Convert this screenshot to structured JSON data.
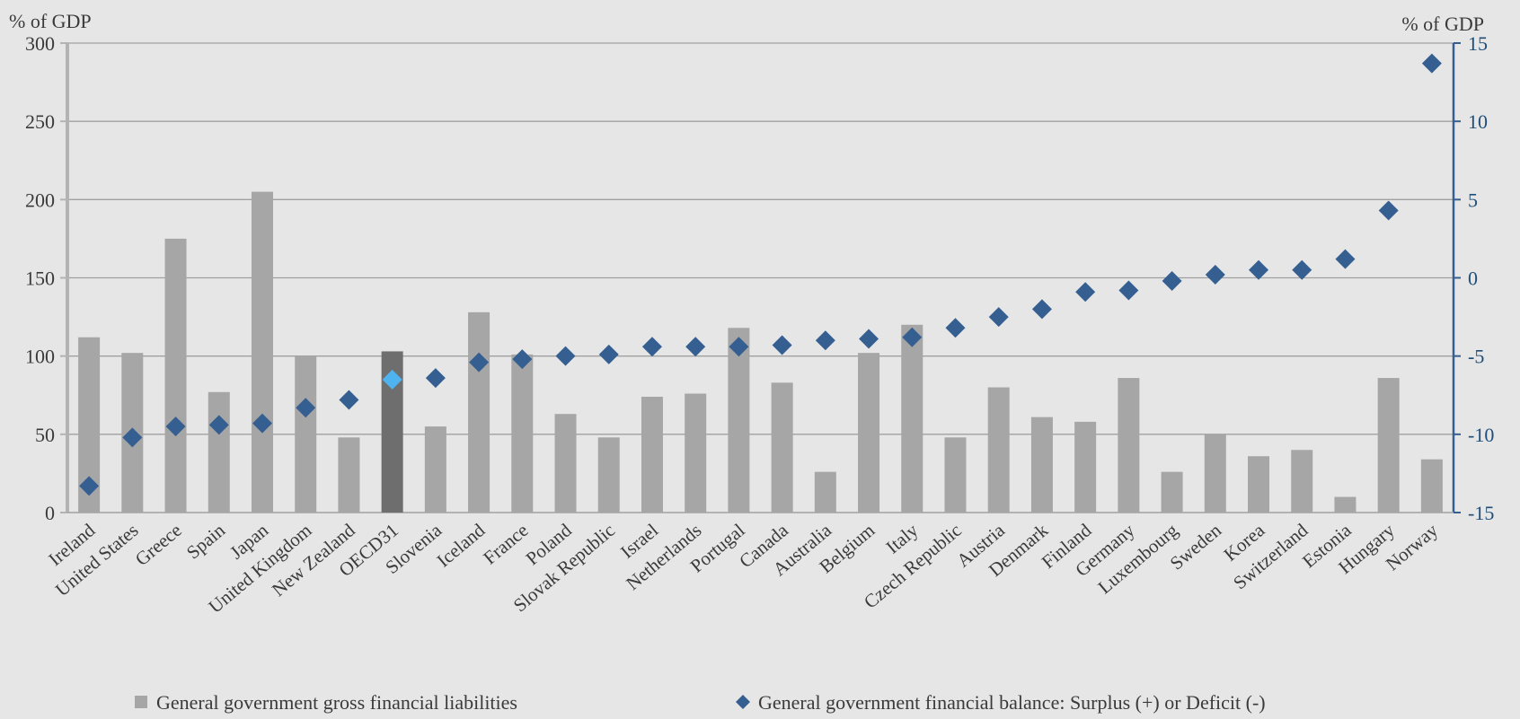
{
  "chart_data": {
    "type": "bar",
    "categories": [
      "Ireland",
      "United States",
      "Greece",
      "Spain",
      "Japan",
      "United Kingdom",
      "New Zealand",
      "OECD31",
      "Slovenia",
      "Iceland",
      "France",
      "Poland",
      "Slovak Republic",
      "Israel",
      "Netherlands",
      "Portugal",
      "Canada",
      "Australia",
      "Belgium",
      "Italy",
      "Czech Republic",
      "Austria",
      "Denmark",
      "Finland",
      "Germany",
      "Luxembourg",
      "Sweden",
      "Korea",
      "Switzerland",
      "Estonia",
      "Hungary",
      "Norway"
    ],
    "series": [
      {
        "name": "General government gross financial liabilities",
        "type": "bar",
        "axis": "left",
        "color": "#a6a6a6",
        "highlight_category": "OECD31",
        "highlight_color": "#6e6e6e",
        "values": [
          112,
          102,
          175,
          77,
          205,
          100,
          48,
          103,
          55,
          128,
          101,
          63,
          48,
          74,
          76,
          118,
          83,
          26,
          102,
          120,
          48,
          80,
          61,
          58,
          86,
          26,
          50,
          36,
          40,
          10,
          86,
          34
        ]
      },
      {
        "name": "General government financial balance: Surplus (+) or Deficit (-)",
        "type": "scatter",
        "axis": "right",
        "color": "#365f91",
        "highlight_category": "OECD31",
        "highlight_color": "#4fb3f0",
        "values": [
          -13.3,
          -10.2,
          -9.5,
          -9.4,
          -9.3,
          -8.3,
          -7.8,
          -6.5,
          -6.4,
          -5.4,
          -5.2,
          -5.0,
          -4.9,
          -4.4,
          -4.4,
          -4.4,
          -4.3,
          -4.0,
          -3.9,
          -3.8,
          -3.2,
          -2.5,
          -2.0,
          -0.9,
          -0.8,
          -0.2,
          0.2,
          0.5,
          0.5,
          1.2,
          4.3,
          13.7
        ]
      }
    ],
    "y_left": {
      "label": "% of GDP",
      "ylim": [
        0,
        300
      ],
      "ticks": [
        "0",
        "50",
        "100",
        "150",
        "200",
        "250",
        "300"
      ]
    },
    "y_right": {
      "label": "% of GDP",
      "ylim": [
        -15,
        15
      ],
      "ticks": [
        "-15",
        "-10",
        "-5",
        "0",
        "5",
        "10",
        "15"
      ]
    },
    "grid": true,
    "legend_position": "bottom"
  },
  "colors": {
    "background": "#e6e6e6",
    "grid": "#a0a0a0",
    "left_axis": "#b3b3b3",
    "right_axis": "#365f91",
    "right_tick_text": "#1f4e79",
    "left_tick_text": "#3a3a3a"
  }
}
